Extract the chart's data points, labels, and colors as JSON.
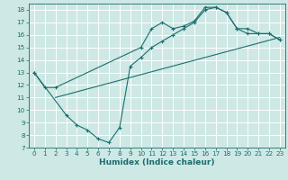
{
  "xlabel": "Humidex (Indice chaleur)",
  "bg_color": "#cde8e5",
  "line_color": "#1a6e6e",
  "xlim": [
    -0.5,
    23.5
  ],
  "ylim": [
    7,
    18.5
  ],
  "yticks": [
    7,
    8,
    9,
    10,
    11,
    12,
    13,
    14,
    15,
    16,
    17,
    18
  ],
  "xticks": [
    0,
    1,
    2,
    3,
    4,
    5,
    6,
    7,
    8,
    9,
    10,
    11,
    12,
    13,
    14,
    15,
    16,
    17,
    18,
    19,
    20,
    21,
    22,
    23
  ],
  "curve1_x": [
    0,
    1,
    2,
    10,
    11,
    12,
    13,
    14,
    15,
    16,
    17,
    18,
    19,
    20,
    21,
    22,
    23
  ],
  "curve1_y": [
    13.0,
    11.8,
    11.8,
    15.0,
    16.5,
    17.0,
    16.5,
    16.7,
    17.1,
    18.2,
    18.2,
    17.8,
    16.5,
    16.1,
    16.1,
    16.1,
    15.6
  ],
  "curve2_x": [
    2,
    23
  ],
  "curve2_y": [
    11.0,
    15.8
  ],
  "curve3_x": [
    0,
    3,
    4,
    5,
    6,
    7,
    8,
    9,
    10,
    11,
    12,
    13,
    14,
    15,
    16,
    17,
    18,
    19,
    20,
    21,
    22,
    23
  ],
  "curve3_y": [
    13.0,
    9.6,
    8.8,
    8.4,
    7.7,
    7.4,
    8.6,
    13.5,
    14.2,
    15.0,
    15.5,
    16.0,
    16.5,
    17.0,
    18.0,
    18.2,
    17.8,
    16.5,
    16.5,
    16.1,
    16.1,
    15.6
  ],
  "tick_fontsize": 5.2,
  "xlabel_fontsize": 6.5
}
